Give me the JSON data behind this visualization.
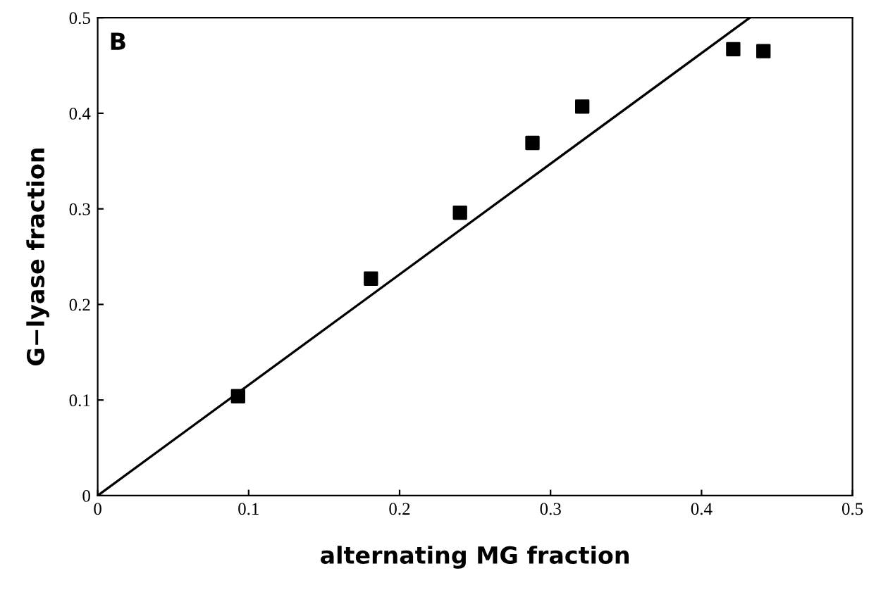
{
  "chart_data": {
    "type": "scatter",
    "xlabel": "alternating MG fraction",
    "ylabel": "G−lyase fraction",
    "annotations": [
      "B"
    ],
    "xlim": [
      0,
      0.5
    ],
    "ylim": [
      0,
      0.5
    ],
    "xticks": [
      0,
      0.1,
      0.2,
      0.3,
      0.4,
      0.5
    ],
    "yticks": [
      0,
      0.1,
      0.2,
      0.3,
      0.4,
      0.5
    ],
    "grid": false,
    "legend": false,
    "marker": "square",
    "series": [
      {
        "color": "#000000",
        "x": [
          0.093,
          0.181,
          0.24,
          0.288,
          0.321,
          0.421,
          0.441
        ],
        "values": [
          0.104,
          0.227,
          0.296,
          0.369,
          0.407,
          0.467,
          0.465
        ]
      },
      {
        "type": "line",
        "color": "#000000",
        "x": [
          0,
          0.432
        ],
        "values": [
          0,
          0.5
        ],
        "marker": "none",
        "line_style": "solid"
      }
    ]
  }
}
